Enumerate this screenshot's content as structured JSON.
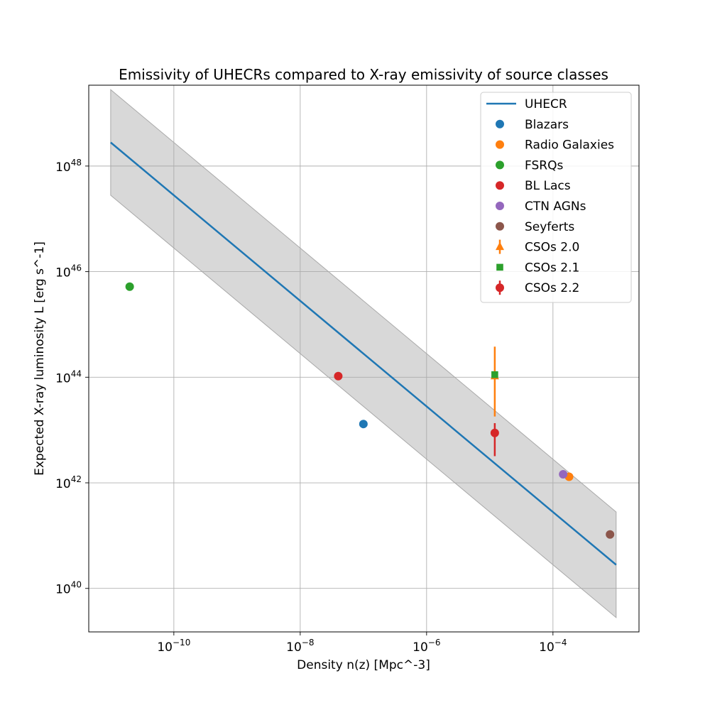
{
  "chart_data": {
    "type": "scatter",
    "title": "Emissivity of UHECRs compared to X-ray emissivity of source classes",
    "xlabel": "Density n(z) [Mpc^-3]",
    "ylabel": "Expected X-ray luminosity L [erg s^-1]",
    "xscale": "log",
    "yscale": "log",
    "xlim": [
      4.5e-12,
      0.0023
    ],
    "ylim": [
      1.5e+39,
      3.4e+49
    ],
    "xticks": [
      {
        "value": 1e-10,
        "base": "10",
        "exp": "−10"
      },
      {
        "value": 1e-08,
        "base": "10",
        "exp": "−8"
      },
      {
        "value": 1e-06,
        "base": "10",
        "exp": "−6"
      },
      {
        "value": 0.0001,
        "base": "10",
        "exp": "−4"
      }
    ],
    "yticks": [
      {
        "value": 1e+40,
        "base": "10",
        "exp": "40"
      },
      {
        "value": 1e+42,
        "base": "10",
        "exp": "42"
      },
      {
        "value": 1e+44,
        "base": "10",
        "exp": "44"
      },
      {
        "value": 1e+46,
        "base": "10",
        "exp": "46"
      },
      {
        "value": 1e+48,
        "base": "10",
        "exp": "48"
      }
    ],
    "grid": true,
    "legend_position": "top-right",
    "uhecr_line": {
      "name": "UHECR",
      "color": "#1f77b4",
      "x": [
        1e-11,
        0.001
      ],
      "y": [
        2.8e+48,
        2.8e+40
      ],
      "band_lower": [
        2.8e+47,
        2.8e+39
      ],
      "band_upper": [
        2.8e+49,
        2.8e+41
      ],
      "band_color": "#a9a9a9"
    },
    "series": [
      {
        "name": "Blazars",
        "color": "#1f77b4",
        "marker": "circle",
        "points": [
          {
            "x": 1e-07,
            "y": 1.3e+43
          }
        ]
      },
      {
        "name": "Radio Galaxies",
        "color": "#ff7f0e",
        "marker": "circle",
        "points": [
          {
            "x": 0.00018,
            "y": 1.3e+42
          }
        ]
      },
      {
        "name": "FSRQs",
        "color": "#2ca02c",
        "marker": "circle",
        "points": [
          {
            "x": 2e-11,
            "y": 5.2e+45
          }
        ]
      },
      {
        "name": "BL Lacs",
        "color": "#d62728",
        "marker": "circle",
        "points": [
          {
            "x": 4e-08,
            "y": 1.05e+44
          }
        ]
      },
      {
        "name": "CTN AGNs",
        "color": "#9467bd",
        "marker": "circle",
        "points": [
          {
            "x": 0.000145,
            "y": 1.45e+42
          }
        ]
      },
      {
        "name": "Seyferts",
        "color": "#8c564b",
        "marker": "circle",
        "points": [
          {
            "x": 0.0008,
            "y": 1.05e+41
          }
        ]
      },
      {
        "name": "CSOs 2.0",
        "color": "#ff7f0e",
        "marker": "triangle",
        "points": [
          {
            "x": 1.2e-05,
            "y": 1.05e+44,
            "yerr_low": 1.8e+43,
            "yerr_high": 3.8e+44
          }
        ]
      },
      {
        "name": "CSOs 2.1",
        "color": "#2ca02c",
        "marker": "square",
        "points": [
          {
            "x": 1.2e-05,
            "y": 1.12e+44
          }
        ]
      },
      {
        "name": "CSOs 2.2",
        "color": "#d62728",
        "marker": "circle",
        "points": [
          {
            "x": 1.2e-05,
            "y": 8.8e+42,
            "yerr_low": 3.2e+42,
            "yerr_high": 1.35e+43
          }
        ]
      }
    ]
  }
}
